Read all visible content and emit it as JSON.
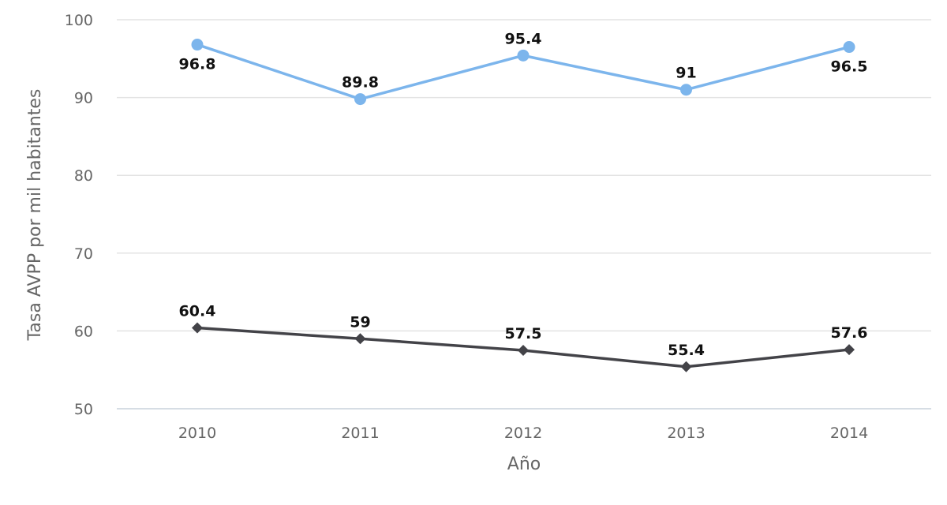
{
  "chart_data": {
    "type": "line",
    "title": "",
    "xlabel": "Año",
    "ylabel": "Tasa AVPP por mil habitantes",
    "categories": [
      "2010",
      "2011",
      "2012",
      "2013",
      "2014"
    ],
    "ylim": [
      50,
      100
    ],
    "yticks": [
      50,
      60,
      70,
      80,
      90,
      100
    ],
    "grid": true,
    "legend": "none",
    "series": [
      {
        "values": [
          96.8,
          89.8,
          95.4,
          91,
          96.5
        ],
        "color": "#7cb5ec",
        "marker": "circle",
        "labels": [
          "96.8",
          "89.8",
          "95.4",
          "91",
          "96.5"
        ],
        "label_side": [
          "below",
          "above",
          "above",
          "above",
          "below"
        ]
      },
      {
        "values": [
          60.4,
          59,
          57.5,
          55.4,
          57.6
        ],
        "color": "#434348",
        "marker": "diamond",
        "labels": [
          "60.4",
          "59",
          "57.5",
          "55.4",
          "57.6"
        ],
        "label_side": [
          "above",
          "above",
          "above",
          "above",
          "above"
        ]
      }
    ]
  }
}
